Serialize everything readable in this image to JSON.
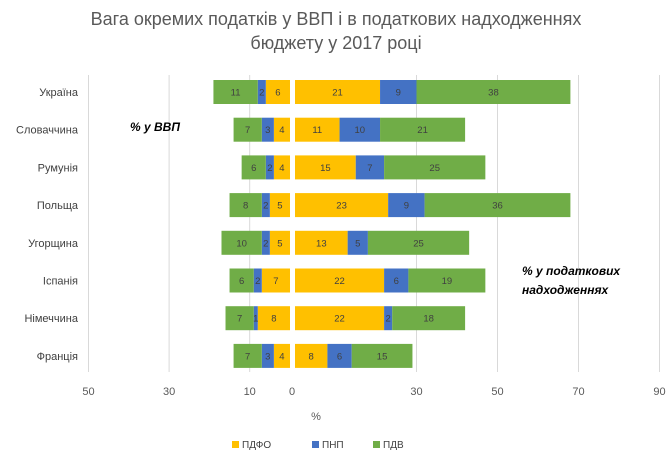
{
  "chart_data": {
    "type": "bar",
    "orientation": "horizontal",
    "stacked": true,
    "title_lines": [
      "Вага окремих податків у ВВП і в податкових надходженнях",
      "бюджету у 2017 році"
    ],
    "xlabel": "%",
    "categories": [
      "Україна",
      "Словаччина",
      "Румунія",
      "Польща",
      "Угорщина",
      "Іспанія",
      "Німеччина",
      "Франція"
    ],
    "series_names": [
      "ПДФО",
      "ПНП",
      "ПДВ"
    ],
    "colors": {
      "ПДФО": "#FFC000",
      "ПНП": "#4472C4",
      "ПДВ": "#70AD47"
    },
    "left_panel": {
      "annotation": "% у ВВП",
      "direction": "reversed",
      "xlim": [
        0,
        50
      ],
      "ticks": [
        "50",
        "30",
        "10",
        "0"
      ],
      "tick_values": [
        50,
        30,
        10,
        0
      ],
      "series": [
        {
          "name": "ПДФО",
          "values": [
            6,
            4,
            4,
            5,
            5,
            7,
            8,
            4
          ]
        },
        {
          "name": "ПНП",
          "values": [
            2,
            3,
            2,
            2,
            2,
            2,
            1,
            3
          ]
        },
        {
          "name": "ПДВ",
          "values": [
            11,
            7,
            6,
            8,
            10,
            6,
            7,
            7
          ]
        }
      ]
    },
    "right_panel": {
      "annotation_lines": [
        "% у податкових",
        "надходженнях"
      ],
      "xlim": [
        0,
        90
      ],
      "ticks": [
        "30",
        "50",
        "70",
        "90"
      ],
      "tick_values": [
        30,
        50,
        70,
        90
      ],
      "series": [
        {
          "name": "ПДФО",
          "values": [
            21,
            11,
            15,
            23,
            13,
            22,
            22,
            8
          ]
        },
        {
          "name": "ПНП",
          "values": [
            9,
            10,
            7,
            9,
            5,
            6,
            2,
            6
          ]
        },
        {
          "name": "ПДВ",
          "values": [
            38,
            21,
            25,
            36,
            25,
            19,
            18,
            15
          ]
        }
      ]
    },
    "legend": {
      "position": "bottom",
      "entries": [
        "ПДФО",
        "ПНП",
        "ПДВ"
      ]
    },
    "grid": true
  }
}
